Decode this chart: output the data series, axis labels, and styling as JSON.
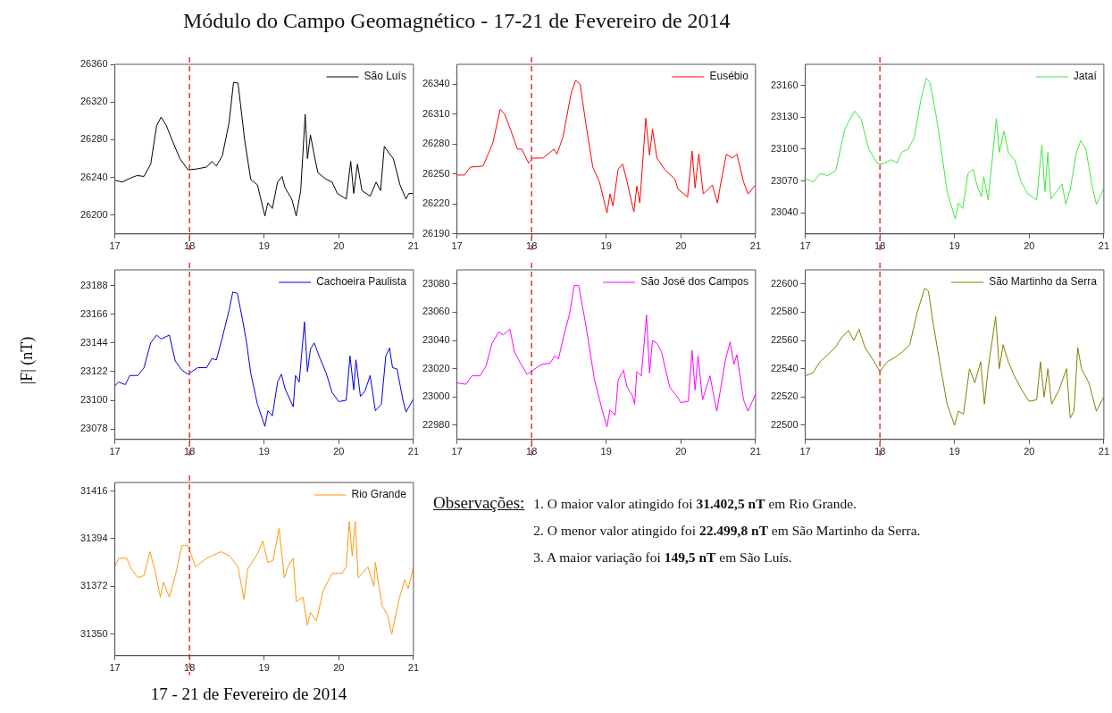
{
  "chart_data": [
    {
      "type": "line",
      "title": "Módulo do Campo Geomagnético - 17-21 de Fevereiro de 2014",
      "xlim": [
        17,
        21
      ],
      "xticks": [
        17,
        18,
        19,
        20,
        21
      ],
      "ylim": [
        26180,
        26360
      ],
      "yticks": [
        26200,
        26240,
        26280,
        26320,
        26360
      ],
      "legend": "top right",
      "marker": "none",
      "ref_lines": [
        {
          "axis": "x",
          "value": 18,
          "color": "#e8322d",
          "line_style": "dashed"
        }
      ],
      "series": [
        {
          "name": "São Luís",
          "color": "#000000",
          "x": [
            17,
            17.1,
            17.2,
            17.3,
            17.39,
            17.48,
            17.56,
            17.62,
            17.69,
            17.77,
            17.87,
            17.98,
            18.1,
            18.23,
            18.3,
            18.36,
            18.44,
            18.53,
            18.59,
            18.65,
            18.74,
            18.82,
            18.91,
            19.01,
            19.05,
            19.11,
            19.18,
            19.24,
            19.28,
            19.37,
            19.43,
            19.49,
            19.55,
            19.58,
            19.62,
            19.68,
            19.72,
            19.83,
            19.91,
            19.98,
            20.1,
            20.16,
            20.2,
            20.25,
            20.31,
            20.42,
            20.5,
            20.56,
            20.61,
            20.67,
            20.73,
            20.82,
            20.9,
            20.94,
            21
          ],
          "values": [
            26237,
            26235,
            26239,
            26242,
            26241,
            26254,
            26295,
            26304,
            26295,
            26279,
            26260,
            26248,
            26249,
            26251,
            26257,
            26252,
            26263,
            26298,
            26341,
            26340,
            26279,
            26238,
            26232,
            26199,
            26213,
            26207,
            26235,
            26241,
            26229,
            26217,
            26199,
            26226,
            26307,
            26260,
            26285,
            26260,
            26245,
            26238,
            26235,
            26223,
            26217,
            26257,
            26223,
            26254,
            26226,
            26220,
            26235,
            26226,
            26273,
            26266,
            26260,
            26232,
            26217,
            26223,
            26223
          ]
        }
      ]
    },
    {
      "type": "line",
      "xlim": [
        17,
        21
      ],
      "xticks": [
        17,
        18,
        19,
        20,
        21
      ],
      "ylim": [
        26190,
        26360
      ],
      "yticks": [
        26190,
        26220,
        26250,
        26280,
        26310,
        26340
      ],
      "legend": "top right",
      "marker": "none",
      "ref_lines": [
        {
          "axis": "x",
          "value": 18,
          "color": "#e8322d",
          "line_style": "dashed"
        }
      ],
      "series": [
        {
          "name": "Eusébio",
          "color": "#ff0000",
          "x": [
            17,
            17.1,
            17.18,
            17.35,
            17.48,
            17.58,
            17.64,
            17.73,
            17.81,
            17.87,
            17.96,
            18.02,
            18.15,
            18.25,
            18.3,
            18.34,
            18.42,
            18.53,
            18.59,
            18.65,
            18.74,
            18.82,
            18.91,
            19.01,
            19.05,
            19.09,
            19.16,
            19.22,
            19.28,
            19.37,
            19.41,
            19.45,
            19.53,
            19.58,
            19.62,
            19.68,
            19.79,
            19.92,
            19.96,
            20.09,
            20.15,
            20.19,
            20.24,
            20.3,
            20.42,
            20.49,
            20.53,
            20.61,
            20.69,
            20.75,
            20.84,
            20.9,
            21
          ],
          "values": [
            26249,
            26249,
            26257,
            26258,
            26281,
            26315,
            26310,
            26292,
            26275,
            26275,
            26261,
            26266,
            26266,
            26272,
            26275,
            26270,
            26287,
            26331,
            26344,
            26340,
            26294,
            26257,
            26242,
            26211,
            26230,
            26218,
            26255,
            26260,
            26242,
            26212,
            26238,
            26221,
            26306,
            26269,
            26295,
            26266,
            26254,
            26245,
            26235,
            26227,
            26273,
            26236,
            26270,
            26230,
            26239,
            26221,
            26239,
            26270,
            26266,
            26270,
            26242,
            26230,
            26239
          ]
        }
      ]
    },
    {
      "type": "line",
      "xlim": [
        17,
        21
      ],
      "xticks": [
        17,
        18,
        19,
        20,
        21
      ],
      "ylim": [
        23020,
        23180
      ],
      "yticks": [
        23040,
        23070,
        23100,
        23130,
        23160
      ],
      "legend": "top right",
      "marker": "none",
      "ref_lines": [
        {
          "axis": "x",
          "value": 18,
          "color": "#e8322d",
          "line_style": "dashed"
        }
      ],
      "series": [
        {
          "name": "Jataí",
          "color": "#3fe83f",
          "x": [
            17,
            17.11,
            17.2,
            17.3,
            17.41,
            17.53,
            17.66,
            17.75,
            17.85,
            17.96,
            18.04,
            18.15,
            18.23,
            18.29,
            18.38,
            18.46,
            18.55,
            18.62,
            18.67,
            18.76,
            18.82,
            18.9,
            19.01,
            19.05,
            19.11,
            19.18,
            19.25,
            19.3,
            19.36,
            19.39,
            19.45,
            19.56,
            19.6,
            19.66,
            19.72,
            19.81,
            19.89,
            19.98,
            20.1,
            20.17,
            20.21,
            20.25,
            20.29,
            20.44,
            20.49,
            20.55,
            20.63,
            20.69,
            20.76,
            20.84,
            20.9,
            21
          ],
          "values": [
            23072,
            23069,
            23077,
            23075,
            23080,
            23119,
            23136,
            23128,
            23100,
            23087,
            23086,
            23090,
            23087,
            23097,
            23100,
            23111,
            23147,
            23167,
            23163,
            23129,
            23100,
            23060,
            23034,
            23049,
            23044,
            23077,
            23081,
            23066,
            23055,
            23074,
            23052,
            23129,
            23097,
            23117,
            23097,
            23089,
            23069,
            23058,
            23052,
            23104,
            23060,
            23097,
            23053,
            23067,
            23048,
            23062,
            23096,
            23108,
            23100,
            23066,
            23048,
            23063
          ]
        }
      ]
    },
    {
      "type": "line",
      "ylabel": "|F| (nT)",
      "xlim": [
        17,
        21
      ],
      "xticks": [
        17,
        18,
        19,
        20,
        21
      ],
      "ylim": [
        23070,
        23200
      ],
      "yticks": [
        23078,
        23100,
        23122,
        23144,
        23166,
        23188
      ],
      "legend": "top right",
      "marker": "none",
      "ref_lines": [
        {
          "axis": "x",
          "value": 18,
          "color": "#e8322d",
          "line_style": "dashed"
        }
      ],
      "series": [
        {
          "name": "Cachoeira Paulista",
          "color": "#0000dd",
          "x": [
            17,
            17.05,
            17.14,
            17.2,
            17.31,
            17.39,
            17.48,
            17.56,
            17.62,
            17.73,
            17.81,
            17.9,
            17.98,
            18.11,
            18.23,
            18.3,
            18.36,
            18.44,
            18.53,
            18.58,
            18.64,
            18.71,
            18.76,
            18.82,
            18.91,
            19.01,
            19.05,
            19.11,
            19.18,
            19.23,
            19.28,
            19.35,
            19.39,
            19.42,
            19.47,
            19.54,
            19.58,
            19.62,
            19.67,
            19.75,
            19.83,
            19.91,
            20,
            20.1,
            20.15,
            20.2,
            20.23,
            20.29,
            20.35,
            20.42,
            20.49,
            20.57,
            20.63,
            20.68,
            20.72,
            20.78,
            20.86,
            20.9,
            21
          ],
          "values": [
            23111,
            23114,
            23112,
            23119,
            23119,
            23125,
            23144,
            23150,
            23147,
            23150,
            23130,
            23123,
            23120,
            23125,
            23125,
            23132,
            23131,
            23148,
            23169,
            23183,
            23182,
            23162,
            23146,
            23121,
            23097,
            23080,
            23092,
            23088,
            23114,
            23120,
            23109,
            23100,
            23095,
            23119,
            23114,
            23160,
            23122,
            23139,
            23144,
            23132,
            23121,
            23106,
            23099,
            23100,
            23134,
            23108,
            23131,
            23103,
            23107,
            23119,
            23092,
            23097,
            23134,
            23140,
            23125,
            23124,
            23100,
            23091,
            23101
          ]
        }
      ]
    },
    {
      "type": "line",
      "xlim": [
        17,
        21
      ],
      "xticks": [
        17,
        18,
        19,
        20,
        21
      ],
      "ylim": [
        22970,
        23090
      ],
      "yticks": [
        22980,
        23000,
        23020,
        23040,
        23060,
        23080
      ],
      "legend": "top right",
      "marker": "none",
      "ref_lines": [
        {
          "axis": "x",
          "value": 18,
          "color": "#e8322d",
          "line_style": "dashed"
        }
      ],
      "series": [
        {
          "name": "São José dos Campos",
          "color": "#ff00ff",
          "x": [
            17,
            17.12,
            17.2,
            17.31,
            17.39,
            17.47,
            17.56,
            17.62,
            17.71,
            17.77,
            17.85,
            17.94,
            18.02,
            18.13,
            18.25,
            18.31,
            18.36,
            18.44,
            18.51,
            18.57,
            18.63,
            18.72,
            18.76,
            18.84,
            18.95,
            19.01,
            19.05,
            19.12,
            19.16,
            19.23,
            19.28,
            19.35,
            19.38,
            19.41,
            19.47,
            19.54,
            19.58,
            19.62,
            19.68,
            19.74,
            19.85,
            19.94,
            20,
            20.1,
            20.15,
            20.19,
            20.23,
            20.29,
            20.39,
            20.48,
            20.52,
            20.6,
            20.66,
            20.71,
            20.75,
            20.84,
            20.9,
            21
          ],
          "values": [
            23010,
            23009,
            23015,
            23015,
            23022,
            23038,
            23046,
            23044,
            23048,
            23032,
            23024,
            23016,
            23019,
            23023,
            23024,
            23029,
            23027,
            23045,
            23059,
            23079,
            23079,
            23053,
            23040,
            23013,
            22990,
            22979,
            22991,
            22987,
            23012,
            23019,
            23007,
            23001,
            22995,
            23018,
            23015,
            23058,
            23017,
            23040,
            23038,
            23032,
            23007,
            23001,
            22996,
            22997,
            23033,
            23005,
            23029,
            22998,
            23015,
            22990,
            23002,
            23027,
            23039,
            23023,
            23030,
            22998,
            22990,
            23002
          ]
        }
      ]
    },
    {
      "type": "line",
      "xlim": [
        17,
        21
      ],
      "xticks": [
        17,
        18,
        19,
        20,
        21
      ],
      "ylim": [
        22490,
        22610
      ],
      "yticks": [
        22500,
        22520,
        22540,
        22560,
        22580,
        22600
      ],
      "legend": "top right",
      "marker": "none",
      "ref_lines": [
        {
          "axis": "x",
          "value": 18,
          "color": "#e8322d",
          "line_style": "dashed"
        }
      ],
      "series": [
        {
          "name": "São Martinho da Serra",
          "color": "#808000",
          "x": [
            17,
            17.1,
            17.2,
            17.3,
            17.4,
            17.5,
            17.58,
            17.65,
            17.72,
            17.8,
            17.9,
            18,
            18.1,
            18.2,
            18.3,
            18.4,
            18.5,
            18.6,
            18.65,
            18.72,
            18.8,
            18.9,
            19,
            19.05,
            19.12,
            19.2,
            19.27,
            19.35,
            19.4,
            19.45,
            19.55,
            19.6,
            19.65,
            19.72,
            19.8,
            19.9,
            20,
            20.1,
            20.15,
            20.2,
            20.25,
            20.3,
            20.4,
            20.5,
            20.55,
            20.6,
            20.65,
            20.7,
            20.8,
            20.9,
            21
          ],
          "values": [
            22535,
            22537,
            22545,
            22550,
            22555,
            22563,
            22567,
            22560,
            22568,
            22555,
            22547,
            22538,
            22545,
            22548,
            22552,
            22557,
            22580,
            22597,
            22595,
            22570,
            22545,
            22515,
            22500,
            22510,
            22508,
            22540,
            22530,
            22545,
            22515,
            22540,
            22577,
            22540,
            22557,
            22545,
            22535,
            22525,
            22517,
            22518,
            22545,
            22520,
            22540,
            22515,
            22525,
            22540,
            22505,
            22510,
            22555,
            22540,
            22530,
            22510,
            22520
          ]
        }
      ]
    },
    {
      "type": "line",
      "xlabel": "17 - 21 de Fevereiro de 2014",
      "xlim": [
        17,
        21
      ],
      "xticks": [
        17,
        18,
        19,
        20,
        21
      ],
      "ylim": [
        31340,
        31420
      ],
      "yticks": [
        31350,
        31372,
        31394,
        31416
      ],
      "legend": "top right",
      "marker": "none",
      "ref_lines": [
        {
          "axis": "x",
          "value": 18,
          "color": "#e8322d",
          "line_style": "dashed"
        }
      ],
      "series": [
        {
          "name": "Rio Grande",
          "color": "#ff9910",
          "x": [
            17,
            17.05,
            17.16,
            17.22,
            17.31,
            17.39,
            17.47,
            17.54,
            17.61,
            17.65,
            17.73,
            17.81,
            17.9,
            17.98,
            18.01,
            18.08,
            18.23,
            18.42,
            18.54,
            18.65,
            18.73,
            18.78,
            18.91,
            18.98,
            19.05,
            19.12,
            19.2,
            19.27,
            19.33,
            19.39,
            19.43,
            19.52,
            19.58,
            19.62,
            19.7,
            19.79,
            19.91,
            20.04,
            20.1,
            20.14,
            20.18,
            20.22,
            20.26,
            20.39,
            20.47,
            20.49,
            20.58,
            20.65,
            20.71,
            20.8,
            20.88,
            20.93,
            21
          ],
          "values": [
            31381,
            31385,
            31385,
            31380,
            31376,
            31377,
            31388,
            31379,
            31367,
            31374,
            31367,
            31377,
            31391,
            31391,
            31388,
            31381,
            31385,
            31388,
            31386,
            31381,
            31366,
            31380,
            31387,
            31393,
            31383,
            31384,
            31399,
            31376,
            31382,
            31385,
            31365,
            31367,
            31354,
            31360,
            31356,
            31370,
            31378,
            31378,
            31381,
            31402,
            31386,
            31402,
            31376,
            31381,
            31372,
            31383,
            31363,
            31359,
            31350,
            31365,
            31375,
            31371,
            31381
          ]
        }
      ]
    },
    {
      "type": "other",
      "title": "Observações:",
      "annotations": [
        "1. O maior valor atingido foi 31.402,5 nT em Rio Grande.",
        "2. O menor valor atingido foi 22.499,8 nT em São Martinho da Serra.",
        "3. A maior variação foi 149,5 nT em São Luís."
      ]
    }
  ]
}
